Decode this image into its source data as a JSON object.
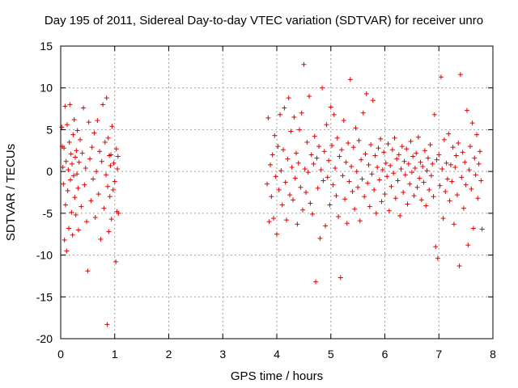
{
  "chart_data": {
    "type": "scatter",
    "title": "Day 195 of 2011, Sidereal Day-to-day VTEC variation (SDTVAR) for receiver unro",
    "xlabel": "GPS time / hours",
    "ylabel": "SDTVAR / TECUs",
    "xlim": [
      0,
      8
    ],
    "ylim": [
      -20,
      15
    ],
    "xticks": [
      "0",
      "1",
      "2",
      "3",
      "4",
      "5",
      "6",
      "7",
      "8"
    ],
    "yticks": [
      "15",
      "10",
      "5",
      "0",
      "-5",
      "-10",
      "-15",
      "-20"
    ],
    "marker": "+",
    "color": "#e00000",
    "grid": true,
    "series": [
      {
        "name": "SDTVAR",
        "points": [
          [
            0.02,
            5.3
          ],
          [
            0.03,
            3.0
          ],
          [
            0.04,
            0.5
          ],
          [
            0.05,
            -1.5
          ],
          [
            0.06,
            2.8
          ],
          [
            0.07,
            -8.2
          ],
          [
            0.08,
            7.8
          ],
          [
            0.09,
            -4.0
          ],
          [
            0.1,
            1.2
          ],
          [
            0.11,
            -9.5
          ],
          [
            0.12,
            5.6
          ],
          [
            0.13,
            -2.3
          ],
          [
            0.14,
            0.2
          ],
          [
            0.15,
            -6.8
          ],
          [
            0.16,
            3.5
          ],
          [
            0.17,
            8.0
          ],
          [
            0.18,
            -1.0
          ],
          [
            0.19,
            2.1
          ],
          [
            0.2,
            -4.9
          ],
          [
            0.21,
            0.9
          ],
          [
            0.22,
            -7.6
          ],
          [
            0.23,
            4.4
          ],
          [
            0.24,
            -0.5
          ],
          [
            0.25,
            6.2
          ],
          [
            0.26,
            -3.1
          ],
          [
            0.27,
            1.7
          ],
          [
            0.28,
            -5.2
          ],
          [
            0.29,
            2.5
          ],
          [
            0.3,
            -0.3
          ],
          [
            0.31,
            4.9
          ],
          [
            0.32,
            -2.0
          ],
          [
            0.33,
            -7.0
          ],
          [
            0.34,
            1.1
          ],
          [
            0.36,
            3.8
          ],
          [
            0.38,
            -4.2
          ],
          [
            0.4,
            2.2
          ],
          [
            0.42,
            7.6
          ],
          [
            0.44,
            -1.6
          ],
          [
            0.46,
            0.4
          ],
          [
            0.48,
            -6.0
          ],
          [
            0.5,
            -11.9
          ],
          [
            0.52,
            5.9
          ],
          [
            0.54,
            1.5
          ],
          [
            0.56,
            -3.5
          ],
          [
            0.58,
            2.9
          ],
          [
            0.6,
            -0.9
          ],
          [
            0.62,
            4.6
          ],
          [
            0.64,
            -5.5
          ],
          [
            0.66,
            0.0
          ],
          [
            0.68,
            6.1
          ],
          [
            0.7,
            -2.7
          ],
          [
            0.72,
            2.4
          ],
          [
            0.74,
            -8.1
          ],
          [
            0.76,
            1.2
          ],
          [
            0.78,
            8.0
          ],
          [
            0.8,
            -4.4
          ],
          [
            0.82,
            3.5
          ],
          [
            0.84,
            -0.4
          ],
          [
            0.85,
            8.8
          ],
          [
            0.86,
            -18.3
          ],
          [
            0.87,
            -1.8
          ],
          [
            0.88,
            4.0
          ],
          [
            0.89,
            -7.2
          ],
          [
            0.9,
            1.9
          ],
          [
            0.91,
            -3.0
          ],
          [
            0.92,
            0.7
          ],
          [
            0.93,
            2.0
          ],
          [
            0.94,
            -5.7
          ],
          [
            0.95,
            5.4
          ],
          [
            0.97,
            -2.2
          ],
          [
            0.98,
            1.0
          ],
          [
            1.0,
            -1.2
          ],
          [
            1.02,
            -10.8
          ],
          [
            1.03,
            2.7
          ],
          [
            1.04,
            -4.8
          ],
          [
            1.05,
            0.3
          ],
          [
            1.06,
            1.8
          ],
          [
            1.07,
            -5.0
          ],
          [
            3.82,
            -1.5
          ],
          [
            3.84,
            6.4
          ],
          [
            3.86,
            -6.0
          ],
          [
            3.88,
            0.8
          ],
          [
            3.9,
            -3.0
          ],
          [
            3.92,
            2.0
          ],
          [
            3.94,
            -5.6
          ],
          [
            3.96,
            4.3
          ],
          [
            3.98,
            -0.6
          ],
          [
            4.0,
            -7.5
          ],
          [
            4.02,
            3.0
          ],
          [
            4.04,
            -2.2
          ],
          [
            4.06,
            6.8
          ],
          [
            4.08,
            0.1
          ],
          [
            4.1,
            -4.0
          ],
          [
            4.12,
            2.6
          ],
          [
            4.14,
            7.6
          ],
          [
            4.16,
            -1.3
          ],
          [
            4.18,
            -5.8
          ],
          [
            4.2,
            1.5
          ],
          [
            4.22,
            8.8
          ],
          [
            4.24,
            -2.8
          ],
          [
            4.26,
            4.8
          ],
          [
            4.28,
            0.5
          ],
          [
            4.3,
            -3.4
          ],
          [
            4.32,
            6.5
          ],
          [
            4.34,
            -0.8
          ],
          [
            4.36,
            2.2
          ],
          [
            4.38,
            -6.3
          ],
          [
            4.4,
            1.0
          ],
          [
            4.42,
            5.0
          ],
          [
            4.44,
            -1.9
          ],
          [
            4.46,
            7.0
          ],
          [
            4.48,
            -4.6
          ],
          [
            4.5,
            12.8
          ],
          [
            4.52,
            0.3
          ],
          [
            4.54,
            -2.5
          ],
          [
            4.56,
            3.5
          ],
          [
            4.58,
            -0.1
          ],
          [
            4.6,
            9.0
          ],
          [
            4.62,
            -3.8
          ],
          [
            4.64,
            2.0
          ],
          [
            4.66,
            -5.1
          ],
          [
            4.68,
            0.9
          ],
          [
            4.7,
            4.2
          ],
          [
            4.72,
            -13.2
          ],
          [
            4.74,
            1.6
          ],
          [
            4.76,
            -2.0
          ],
          [
            4.78,
            3.0
          ],
          [
            4.8,
            -8.0
          ],
          [
            4.82,
            0.2
          ],
          [
            4.84,
            10.0
          ],
          [
            4.86,
            -1.1
          ],
          [
            4.88,
            2.4
          ],
          [
            4.9,
            -6.5
          ],
          [
            4.92,
            5.6
          ],
          [
            4.94,
            -0.7
          ],
          [
            4.96,
            1.3
          ],
          [
            4.98,
            -4.0
          ],
          [
            5.0,
            7.7
          ],
          [
            5.02,
            3.1
          ],
          [
            5.04,
            -1.6
          ],
          [
            5.06,
            6.8
          ],
          [
            5.08,
            0.4
          ],
          [
            5.1,
            -2.9
          ],
          [
            5.12,
            4.0
          ],
          [
            5.14,
            -5.4
          ],
          [
            5.16,
            1.8
          ],
          [
            5.18,
            -12.7
          ],
          [
            5.2,
            2.6
          ],
          [
            5.22,
            -0.5
          ],
          [
            5.24,
            6.1
          ],
          [
            5.26,
            -3.3
          ],
          [
            5.28,
            1.1
          ],
          [
            5.3,
            -6.2
          ],
          [
            5.32,
            3.4
          ],
          [
            5.34,
            -1.2
          ],
          [
            5.36,
            11.0
          ],
          [
            5.38,
            0.6
          ],
          [
            5.4,
            -2.4
          ],
          [
            5.42,
            2.9
          ],
          [
            5.44,
            -4.5
          ],
          [
            5.46,
            5.2
          ],
          [
            5.48,
            0.0
          ],
          [
            5.5,
            -1.9
          ],
          [
            5.52,
            3.7
          ],
          [
            5.54,
            -5.9
          ],
          [
            5.56,
            1.4
          ],
          [
            5.58,
            -0.9
          ],
          [
            5.6,
            7.0
          ],
          [
            5.62,
            -3.0
          ],
          [
            5.64,
            2.1
          ],
          [
            5.66,
            9.3
          ],
          [
            5.68,
            -1.4
          ],
          [
            5.7,
            0.8
          ],
          [
            5.72,
            -4.2
          ],
          [
            5.74,
            3.2
          ],
          [
            5.76,
            -0.3
          ],
          [
            5.78,
            8.5
          ],
          [
            5.8,
            -2.2
          ],
          [
            5.82,
            1.9
          ],
          [
            5.84,
            -5.0
          ],
          [
            5.86,
            0.5
          ],
          [
            5.88,
            2.8
          ],
          [
            5.9,
            -1.0
          ],
          [
            5.92,
            3.9
          ],
          [
            5.94,
            -3.6
          ],
          [
            5.96,
            0.2
          ],
          [
            5.98,
            2.3
          ],
          [
            6.0,
            -2.7
          ],
          [
            6.02,
            1.0
          ],
          [
            6.04,
            -0.6
          ],
          [
            6.06,
            3.3
          ],
          [
            6.08,
            -4.7
          ],
          [
            6.1,
            0.7
          ],
          [
            6.12,
            -1.8
          ],
          [
            6.14,
            2.6
          ],
          [
            6.16,
            -0.2
          ],
          [
            6.18,
            4.0
          ],
          [
            6.2,
            -3.2
          ],
          [
            6.22,
            1.5
          ],
          [
            6.24,
            -1.1
          ],
          [
            6.26,
            2.0
          ],
          [
            6.28,
            -5.3
          ],
          [
            6.3,
            0.3
          ],
          [
            6.32,
            3.0
          ],
          [
            6.34,
            -2.5
          ],
          [
            6.36,
            1.2
          ],
          [
            6.38,
            -0.4
          ],
          [
            6.4,
            2.7
          ],
          [
            6.42,
            -3.9
          ],
          [
            6.44,
            0.9
          ],
          [
            6.46,
            -1.5
          ],
          [
            6.48,
            3.6
          ],
          [
            6.5,
            -0.1
          ],
          [
            6.52,
            1.8
          ],
          [
            6.54,
            -2.9
          ],
          [
            6.56,
            0.4
          ],
          [
            6.58,
            2.2
          ],
          [
            6.6,
            -1.9
          ],
          [
            6.62,
            4.1
          ],
          [
            6.64,
            -0.8
          ],
          [
            6.66,
            1.1
          ],
          [
            6.68,
            -3.4
          ],
          [
            6.7,
            0.6
          ],
          [
            6.72,
            -1.3
          ],
          [
            6.74,
            2.5
          ],
          [
            6.76,
            -4.1
          ],
          [
            6.78,
            0.1
          ],
          [
            6.8,
            1.6
          ],
          [
            6.82,
            -2.2
          ],
          [
            6.84,
            3.2
          ],
          [
            6.86,
            -0.5
          ],
          [
            6.88,
            0.9
          ],
          [
            6.9,
            -3.0
          ],
          [
            6.92,
            6.8
          ],
          [
            6.94,
            -9.0
          ],
          [
            6.96,
            1.4
          ],
          [
            6.98,
            -10.4
          ],
          [
            7.0,
            2.0
          ],
          [
            7.02,
            -1.7
          ],
          [
            7.04,
            11.3
          ],
          [
            7.06,
            0.3
          ],
          [
            7.08,
            -5.6
          ],
          [
            7.1,
            3.8
          ],
          [
            7.12,
            -2.4
          ],
          [
            7.14,
            1.0
          ],
          [
            7.16,
            -0.9
          ],
          [
            7.18,
            4.5
          ],
          [
            7.2,
            -3.5
          ],
          [
            7.22,
            0.8
          ],
          [
            7.24,
            -1.2
          ],
          [
            7.26,
            2.9
          ],
          [
            7.28,
            -6.3
          ],
          [
            7.3,
            0.5
          ],
          [
            7.32,
            1.9
          ],
          [
            7.34,
            -2.8
          ],
          [
            7.36,
            3.4
          ],
          [
            7.38,
            -11.3
          ],
          [
            7.4,
            11.6
          ],
          [
            7.42,
            -0.7
          ],
          [
            7.44,
            2.3
          ],
          [
            7.46,
            -4.4
          ],
          [
            7.48,
            1.1
          ],
          [
            7.5,
            -1.6
          ],
          [
            7.52,
            7.3
          ],
          [
            7.54,
            -8.8
          ],
          [
            7.56,
            0.2
          ],
          [
            7.58,
            3.0
          ],
          [
            7.6,
            -2.1
          ],
          [
            7.62,
            5.8
          ],
          [
            7.64,
            -6.8
          ],
          [
            7.66,
            1.6
          ],
          [
            7.68,
            -0.4
          ],
          [
            7.7,
            4.4
          ],
          [
            7.72,
            -3.2
          ],
          [
            7.74,
            0.9
          ],
          [
            7.76,
            2.4
          ],
          [
            7.78,
            -1.1
          ],
          [
            7.8,
            -6.9
          ]
        ]
      }
    ]
  }
}
